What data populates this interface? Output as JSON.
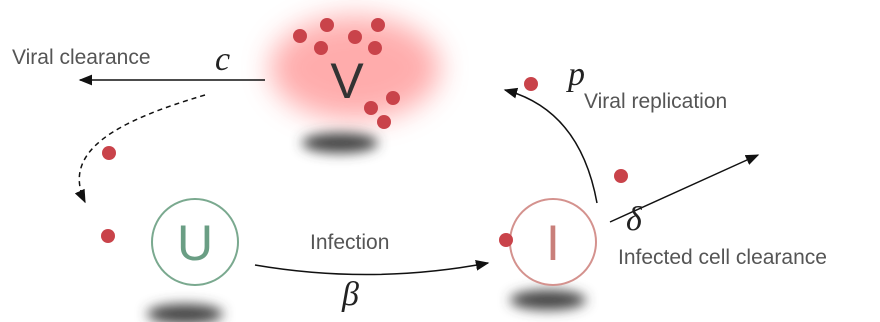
{
  "nodes": [
    {
      "label": "V"
    },
    {
      "label": "U"
    },
    {
      "label": "I"
    }
  ],
  "edges": [
    {
      "label": "Viral clearance",
      "symbol": "c"
    },
    {
      "label": "Viral replication",
      "symbol": "p"
    },
    {
      "label": "Infection",
      "symbol": "β"
    },
    {
      "label": "Infected cell clearance",
      "symbol": "δ"
    }
  ]
}
